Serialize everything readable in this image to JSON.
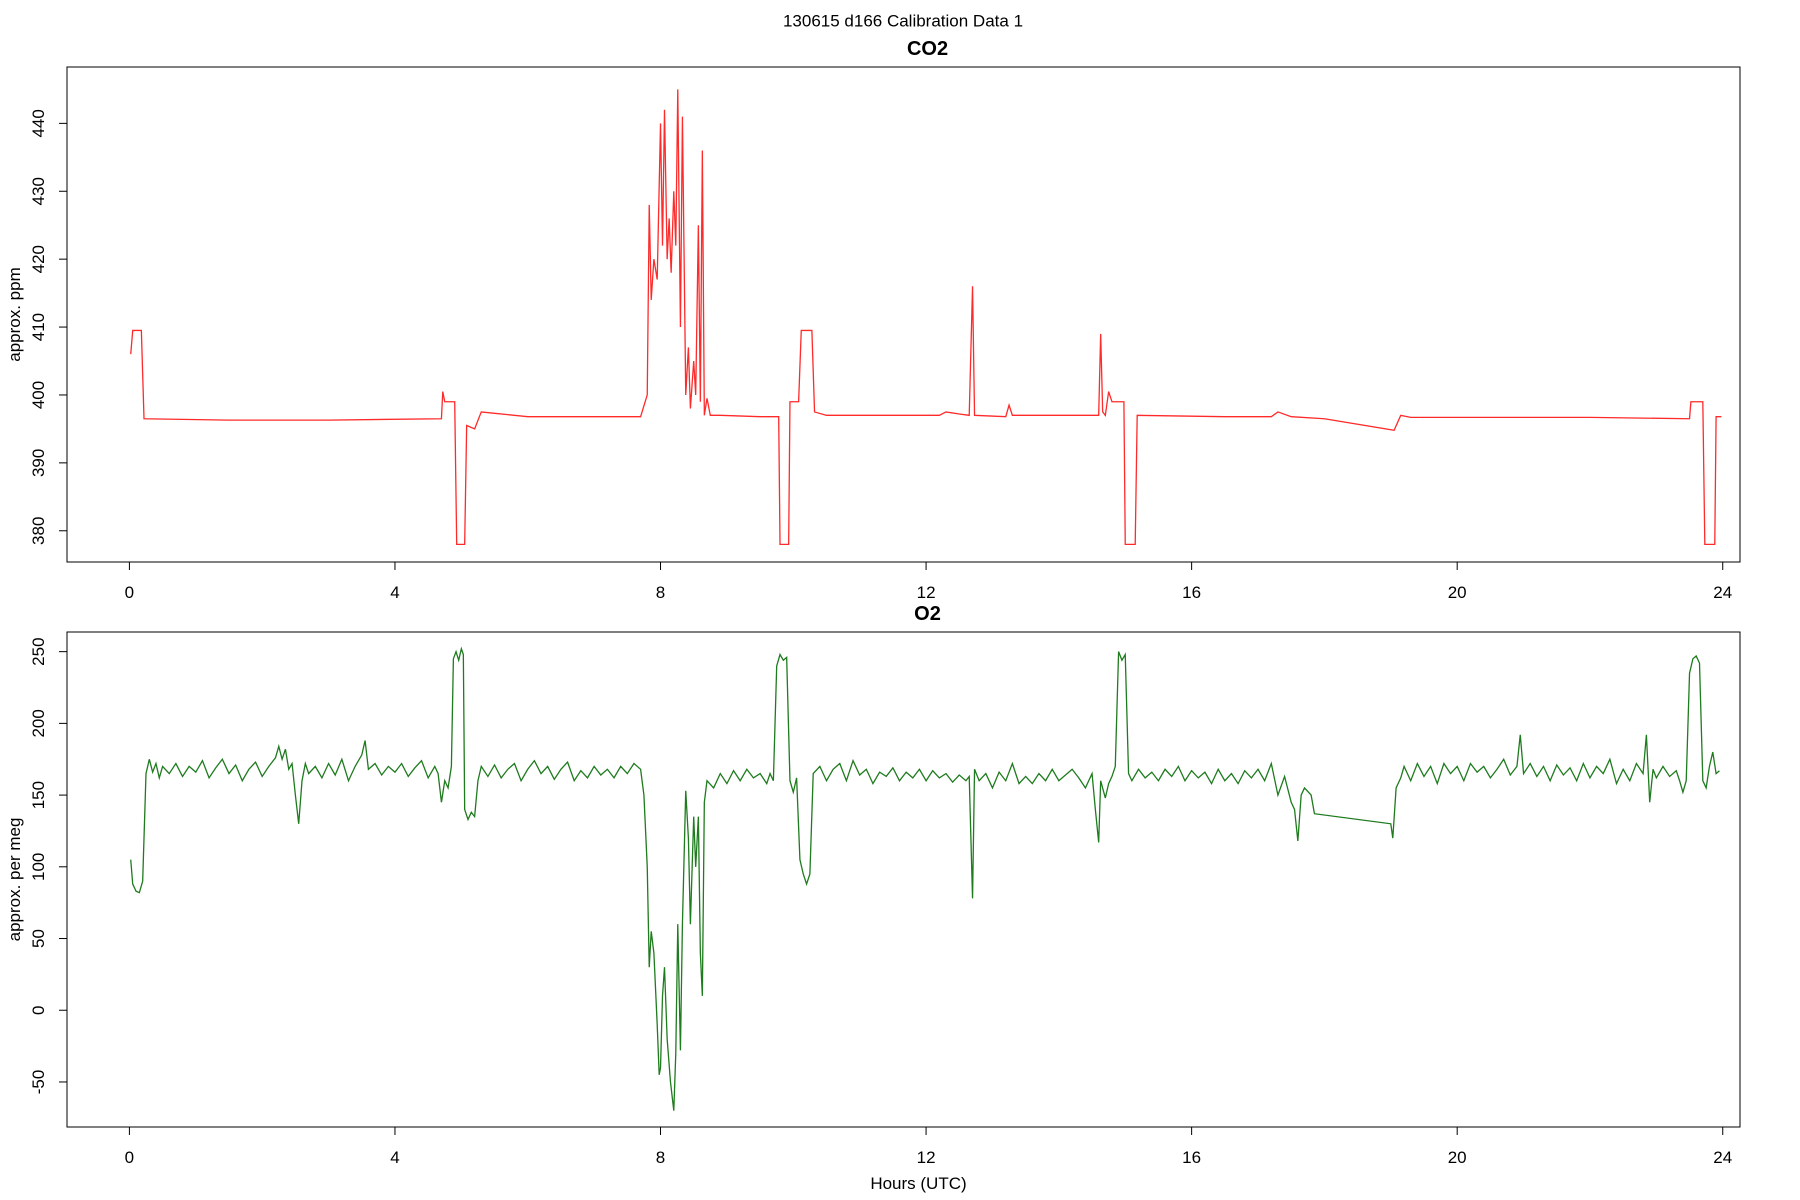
{
  "title": "130615   d166   Calibration Data 1",
  "chart_data": [
    {
      "type": "line",
      "title": "CO2",
      "y_label": "approx. ppm",
      "color": "#ff2a2a",
      "xlim": [
        -0.94,
        24.26
      ],
      "xticks": [
        0,
        4,
        8,
        12,
        16,
        20,
        24
      ],
      "ylim": [
        375.4,
        448.3
      ],
      "yticks": [
        380,
        390,
        400,
        410,
        420,
        430,
        440
      ],
      "x": [
        0.02,
        0.05,
        0.18,
        0.22,
        1.5,
        3.0,
        4.7,
        4.72,
        4.75,
        4.9,
        4.93,
        5.05,
        5.08,
        5.2,
        5.3,
        5.5,
        6.0,
        7.7,
        7.8,
        7.83,
        7.86,
        7.9,
        7.95,
        8.0,
        8.03,
        8.06,
        8.1,
        8.13,
        8.16,
        8.2,
        8.23,
        8.26,
        8.3,
        8.33,
        8.38,
        8.42,
        8.45,
        8.5,
        8.53,
        8.57,
        8.6,
        8.63,
        8.66,
        8.7,
        8.75,
        8.9,
        9.5,
        9.78,
        9.8,
        9.93,
        9.95,
        10.08,
        10.12,
        10.28,
        10.32,
        10.5,
        12.2,
        12.3,
        12.5,
        12.65,
        12.7,
        12.73,
        13.2,
        13.25,
        13.3,
        14.0,
        14.6,
        14.63,
        14.66,
        14.7,
        14.75,
        14.8,
        14.98,
        15.0,
        15.15,
        15.18,
        16.5,
        17.2,
        17.3,
        17.5,
        18.0,
        19.05,
        19.15,
        19.3,
        22.0,
        23.5,
        23.52,
        23.7,
        23.73,
        23.88,
        23.9,
        23.98
      ],
      "values": [
        406,
        409.5,
        409.5,
        396.5,
        396.3,
        396.3,
        396.5,
        400.5,
        399,
        399,
        378,
        378,
        395.5,
        395,
        397.5,
        397.3,
        396.8,
        396.8,
        400,
        428,
        414,
        420,
        417,
        440,
        422,
        442,
        420,
        426,
        418,
        430,
        422,
        445,
        410,
        441,
        400,
        407,
        398,
        405,
        400,
        425,
        399,
        436,
        397,
        399.5,
        397,
        397,
        396.8,
        396.8,
        378,
        378,
        399,
        399,
        409.5,
        409.5,
        397.5,
        397,
        397,
        397.5,
        397.2,
        397,
        416,
        397,
        396.8,
        398.5,
        397,
        397,
        397,
        409,
        397.5,
        397,
        400.5,
        399,
        399,
        378,
        378,
        397,
        396.8,
        396.8,
        397.5,
        396.8,
        396.5,
        394.8,
        397,
        396.7,
        396.7,
        396.5,
        399,
        399,
        378,
        378,
        396.8,
        396.8
      ]
    },
    {
      "type": "line",
      "title": "O2",
      "y_label": "approx. per meg",
      "x_label": "Hours (UTC)",
      "color": "#1e7b1e",
      "xlim": [
        -0.94,
        24.26
      ],
      "xticks": [
        0,
        4,
        8,
        12,
        16,
        20,
        24
      ],
      "ylim": [
        -81.4,
        263.7
      ],
      "yticks": [
        -50,
        0,
        50,
        100,
        150,
        200,
        250
      ],
      "x": [
        0.02,
        0.05,
        0.1,
        0.15,
        0.2,
        0.25,
        0.3,
        0.35,
        0.4,
        0.45,
        0.5,
        0.6,
        0.7,
        0.8,
        0.9,
        1.0,
        1.1,
        1.2,
        1.3,
        1.4,
        1.5,
        1.6,
        1.7,
        1.8,
        1.9,
        2.0,
        2.1,
        2.2,
        2.25,
        2.3,
        2.35,
        2.4,
        2.45,
        2.5,
        2.55,
        2.6,
        2.65,
        2.7,
        2.8,
        2.9,
        3.0,
        3.1,
        3.2,
        3.3,
        3.4,
        3.5,
        3.55,
        3.6,
        3.7,
        3.8,
        3.9,
        4.0,
        4.1,
        4.2,
        4.3,
        4.4,
        4.5,
        4.6,
        4.65,
        4.7,
        4.75,
        4.8,
        4.85,
        4.88,
        4.92,
        4.96,
        5.0,
        5.03,
        5.05,
        5.1,
        5.15,
        5.2,
        5.25,
        5.3,
        5.4,
        5.5,
        5.6,
        5.7,
        5.8,
        5.9,
        6.0,
        6.1,
        6.2,
        6.3,
        6.4,
        6.5,
        6.6,
        6.7,
        6.8,
        6.9,
        7.0,
        7.1,
        7.2,
        7.3,
        7.4,
        7.5,
        7.6,
        7.7,
        7.75,
        7.8,
        7.83,
        7.86,
        7.9,
        7.95,
        7.98,
        8.0,
        8.03,
        8.06,
        8.1,
        8.15,
        8.2,
        8.23,
        8.26,
        8.3,
        8.33,
        8.38,
        8.42,
        8.45,
        8.5,
        8.53,
        8.57,
        8.6,
        8.63,
        8.66,
        8.7,
        8.8,
        8.9,
        9.0,
        9.1,
        9.2,
        9.3,
        9.4,
        9.5,
        9.6,
        9.65,
        9.7,
        9.75,
        9.8,
        9.85,
        9.9,
        9.95,
        10.0,
        10.05,
        10.1,
        10.15,
        10.2,
        10.25,
        10.3,
        10.4,
        10.5,
        10.6,
        10.7,
        10.8,
        10.9,
        11.0,
        11.1,
        11.2,
        11.3,
        11.4,
        11.5,
        11.6,
        11.7,
        11.8,
        11.9,
        12.0,
        12.1,
        12.2,
        12.3,
        12.4,
        12.5,
        12.6,
        12.65,
        12.7,
        12.73,
        12.8,
        12.9,
        13.0,
        13.1,
        13.2,
        13.3,
        13.4,
        13.5,
        13.6,
        13.7,
        13.8,
        13.9,
        14.0,
        14.1,
        14.2,
        14.3,
        14.4,
        14.5,
        14.55,
        14.6,
        14.63,
        14.7,
        14.75,
        14.8,
        14.85,
        14.9,
        14.95,
        15.0,
        15.05,
        15.1,
        15.2,
        15.3,
        15.4,
        15.5,
        15.6,
        15.7,
        15.8,
        15.9,
        16.0,
        16.1,
        16.2,
        16.3,
        16.4,
        16.5,
        16.6,
        16.7,
        16.8,
        16.9,
        17.0,
        17.1,
        17.2,
        17.3,
        17.4,
        17.5,
        17.55,
        17.6,
        17.65,
        17.7,
        17.8,
        17.85,
        19.0,
        19.03,
        19.08,
        19.15,
        19.2,
        19.3,
        19.4,
        19.5,
        19.6,
        19.7,
        19.8,
        19.9,
        20.0,
        20.1,
        20.2,
        20.3,
        20.4,
        20.5,
        20.6,
        20.7,
        20.8,
        20.9,
        20.95,
        21.0,
        21.1,
        21.2,
        21.3,
        21.4,
        21.5,
        21.6,
        21.7,
        21.8,
        21.9,
        22.0,
        22.1,
        22.2,
        22.3,
        22.4,
        22.5,
        22.6,
        22.7,
        22.8,
        22.85,
        22.9,
        22.95,
        23.0,
        23.1,
        23.2,
        23.3,
        23.35,
        23.4,
        23.45,
        23.5,
        23.55,
        23.6,
        23.65,
        23.7,
        23.75,
        23.8,
        23.85,
        23.9,
        23.95
      ],
      "values": [
        105,
        88,
        83,
        82,
        90,
        165,
        175,
        166,
        172,
        162,
        170,
        165,
        172,
        163,
        170,
        166,
        174,
        162,
        169,
        175,
        165,
        171,
        160,
        168,
        173,
        163,
        170,
        176,
        184,
        175,
        182,
        168,
        172,
        150,
        130,
        160,
        172,
        165,
        170,
        162,
        172,
        164,
        175,
        160,
        170,
        178,
        188,
        168,
        172,
        164,
        170,
        166,
        172,
        163,
        169,
        174,
        162,
        170,
        165,
        145,
        160,
        155,
        170,
        245,
        250,
        244,
        252,
        248,
        140,
        133,
        138,
        135,
        160,
        170,
        163,
        171,
        162,
        168,
        172,
        160,
        168,
        174,
        165,
        170,
        161,
        168,
        173,
        160,
        167,
        162,
        170,
        164,
        168,
        162,
        170,
        165,
        172,
        168,
        150,
        100,
        30,
        55,
        40,
        -10,
        -45,
        -40,
        10,
        30,
        -20,
        -50,
        -70,
        -30,
        60,
        -28,
        60,
        153,
        120,
        60,
        135,
        100,
        135,
        40,
        10,
        145,
        160,
        155,
        165,
        158,
        167,
        160,
        168,
        162,
        165,
        158,
        165,
        160,
        240,
        248,
        244,
        246,
        160,
        152,
        162,
        105,
        95,
        88,
        95,
        165,
        170,
        160,
        168,
        172,
        160,
        174,
        164,
        168,
        158,
        166,
        163,
        169,
        160,
        166,
        162,
        168,
        160,
        167,
        162,
        165,
        159,
        164,
        160,
        163,
        78,
        168,
        160,
        165,
        155,
        166,
        160,
        172,
        158,
        163,
        158,
        165,
        160,
        168,
        160,
        164,
        168,
        162,
        155,
        165,
        140,
        117,
        160,
        148,
        158,
        163,
        170,
        250,
        244,
        248,
        165,
        160,
        168,
        162,
        166,
        160,
        168,
        163,
        170,
        160,
        167,
        162,
        166,
        158,
        168,
        160,
        165,
        158,
        167,
        162,
        168,
        160,
        172,
        150,
        163,
        145,
        140,
        118,
        150,
        155,
        150,
        137,
        130,
        120,
        155,
        162,
        170,
        160,
        172,
        163,
        170,
        158,
        172,
        165,
        170,
        160,
        172,
        166,
        170,
        162,
        168,
        175,
        164,
        170,
        192,
        165,
        172,
        163,
        170,
        160,
        171,
        164,
        169,
        160,
        172,
        162,
        170,
        165,
        175,
        158,
        168,
        160,
        172,
        165,
        192,
        145,
        168,
        162,
        170,
        163,
        167,
        160,
        152,
        160,
        235,
        245,
        247,
        242,
        160,
        155,
        170,
        180,
        165,
        167
      ]
    }
  ]
}
